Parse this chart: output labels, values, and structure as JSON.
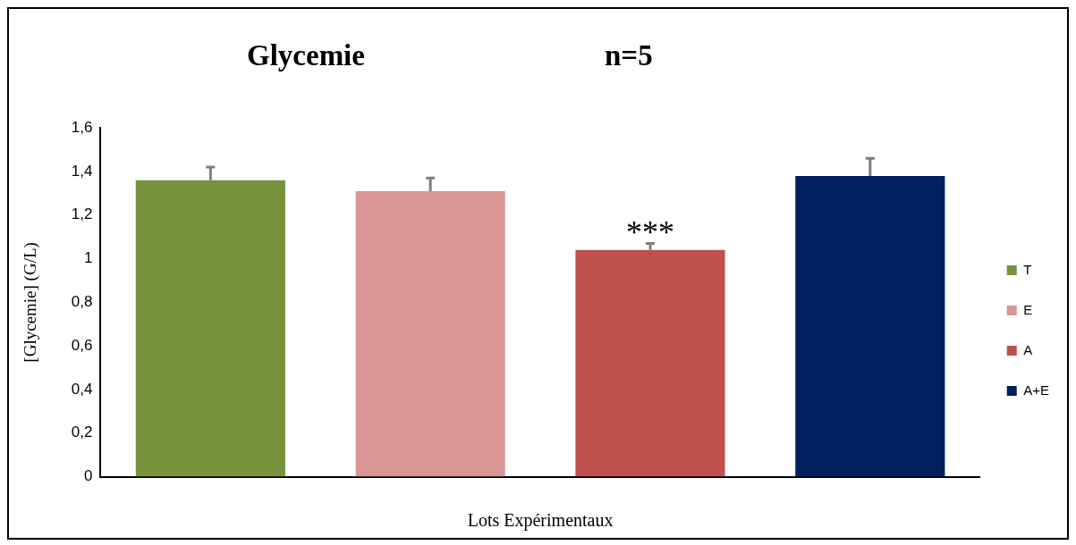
{
  "chart_data": {
    "type": "bar",
    "title": "Glycemie",
    "subtitle": "n=5",
    "ylabel": "[Glycemie] (G/L)",
    "xlabel": "Lots Expérimentaux",
    "categories": [
      null,
      null,
      null,
      null
    ],
    "series": [
      {
        "name": "T",
        "color": "#77933c",
        "values": [
          1.36,
          null,
          null,
          null
        ],
        "errors": [
          [
            1.36,
            1.42
          ],
          null,
          null,
          null
        ]
      },
      {
        "name": "E",
        "color": "#d99694",
        "values": [
          null,
          1.31,
          null,
          null
        ],
        "errors": [
          null,
          [
            1.31,
            1.37
          ],
          null,
          null
        ]
      },
      {
        "name": "A",
        "color": "#c0504d",
        "values": [
          null,
          null,
          1.04,
          null
        ],
        "errors": [
          null,
          null,
          [
            1.04,
            1.07
          ],
          null
        ]
      },
      {
        "name": "A+E",
        "color": "#002060",
        "values": [
          null,
          null,
          null,
          1.38
        ],
        "errors": [
          null,
          null,
          null,
          [
            1.38,
            1.46
          ]
        ]
      }
    ],
    "ylim": [
      0,
      1.6
    ],
    "yticks": [
      0,
      {
        "value": 0.2,
        "label": "0,2"
      },
      {
        "value": 0.4,
        "label": "0,4"
      },
      {
        "value": 0.6,
        "label": "0,6"
      },
      {
        "value": 0.8,
        "label": "0,8"
      },
      1,
      {
        "value": 1.2,
        "label": "1,2"
      },
      {
        "value": 1.4,
        "label": "1,4"
      },
      {
        "value": 1.6,
        "label": "1,6"
      }
    ],
    "annotations": [
      {
        "text": "***",
        "y": 1.07
      }
    ],
    "grid": false,
    "legend": "right"
  }
}
